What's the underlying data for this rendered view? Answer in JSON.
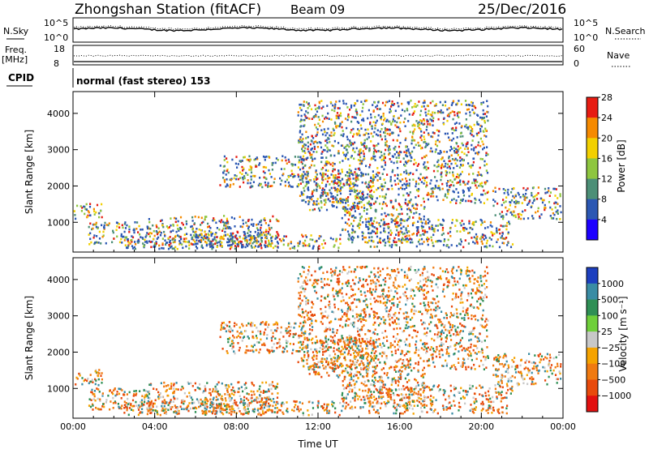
{
  "header": {
    "station": "Zhongshan Station (fitACF)",
    "beam": "Beam 09",
    "date": "25/Dec/2016"
  },
  "nsky_panel": {
    "left_label": "N.Sky",
    "right_label": "N.Search",
    "left_ticks": [
      "10^5",
      "10^0"
    ],
    "right_ticks": [
      "10^5",
      "10^0"
    ]
  },
  "freq_panel": {
    "left_label_1": "Freq.",
    "left_label_2": "[MHz]",
    "right_label": "Nave",
    "left_ticks": [
      "18",
      "8"
    ],
    "right_ticks": [
      "60",
      "0"
    ]
  },
  "cpid_panel": {
    "left_label": "CPID",
    "mode_text": "normal (fast stereo) 153"
  },
  "chart_data": [
    {
      "type": "heatmap",
      "name": "power",
      "ylabel": "Slant Range [km]",
      "xlabel": "",
      "yticks": [
        "1000",
        "2000",
        "3000",
        "4000"
      ],
      "ylim": [
        180,
        4600
      ],
      "xlim": [
        0,
        24
      ],
      "colorbar_label": "Power [dB]",
      "colorbar_ticks": [
        "4",
        "8",
        "12",
        "16",
        "20",
        "24",
        "28"
      ],
      "colorbar_colors": [
        "#1d00ff",
        "#2b57b3",
        "#4c8f77",
        "#8ec63f",
        "#f2d000",
        "#f58a00",
        "#e71c12"
      ]
    },
    {
      "type": "heatmap",
      "name": "velocity",
      "ylabel": "Slant Range [km]",
      "xlabel": "Time UT",
      "xticks": [
        "00:00",
        "04:00",
        "08:00",
        "12:00",
        "16:00",
        "20:00",
        "00:00"
      ],
      "yticks": [
        "1000",
        "2000",
        "3000",
        "4000"
      ],
      "ylim": [
        180,
        4600
      ],
      "xlim": [
        0,
        24
      ],
      "colorbar_label": "Velocity [m s⁻¹]",
      "colorbar_ticks": [
        "1000",
        "500",
        "100",
        "25",
        "−25",
        "−100",
        "−500",
        "−1000"
      ],
      "colorbar_colors": [
        "#1d3fbf",
        "#3a8ca4",
        "#2f8f55",
        "#6fcf3a",
        "#c8c8c8",
        "#f5a300",
        "#f07a10",
        "#e84a0c",
        "#e21010"
      ]
    }
  ]
}
